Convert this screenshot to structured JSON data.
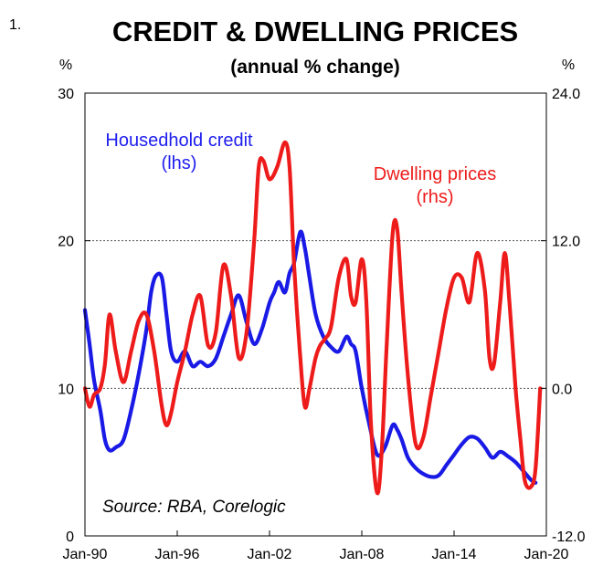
{
  "figure_number": "1.",
  "chart_data": {
    "type": "line",
    "title": "CREDIT & DWELLING PRICES",
    "subtitle": "(annual % change)",
    "left_axis": {
      "unit": "%",
      "ylim": [
        0,
        30
      ],
      "ticks": [
        "0",
        "10",
        "20",
        "30"
      ]
    },
    "right_axis": {
      "unit": "%",
      "ylim": [
        -12,
        24
      ],
      "ticks": [
        "-12.0",
        "0.0",
        "12.0",
        "24.0"
      ]
    },
    "xlim": [
      1990.0,
      2020.0
    ],
    "x_ticks": [
      {
        "value": 1990,
        "label": "Jan-90"
      },
      {
        "value": 1996,
        "label": "Jan-96"
      },
      {
        "value": 2002,
        "label": "Jan-02"
      },
      {
        "value": 2008,
        "label": "Jan-08"
      },
      {
        "value": 2014,
        "label": "Jan-14"
      },
      {
        "value": 2020,
        "label": "Jan-20"
      }
    ],
    "gridlines": [
      10,
      20
    ],
    "series": [
      {
        "name": "Housedhold credit (lhs)",
        "label_lines": [
          "Housedhold credit",
          "(lhs)"
        ],
        "axis": "left",
        "color": "#1a1ae6",
        "x": [
          1990.0,
          1990.3,
          1990.6,
          1991.0,
          1991.3,
          1991.6,
          1992.0,
          1992.5,
          1993.0,
          1993.5,
          1994.0,
          1994.3,
          1994.6,
          1995.0,
          1995.3,
          1995.6,
          1996.0,
          1996.5,
          1997.0,
          1997.5,
          1998.0,
          1998.5,
          1999.0,
          1999.5,
          2000.0,
          2000.5,
          2001.0,
          2001.5,
          2002.0,
          2002.3,
          2002.6,
          2003.0,
          2003.3,
          2003.6,
          2004.0,
          2004.3,
          2004.6,
          2005.0,
          2005.5,
          2006.0,
          2006.5,
          2007.0,
          2007.3,
          2007.6,
          2008.0,
          2008.5,
          2009.0,
          2009.5,
          2010.0,
          2010.3,
          2010.6,
          2011.0,
          2011.5,
          2012.0,
          2012.5,
          2013.0,
          2013.5,
          2014.0,
          2014.5,
          2015.0,
          2015.5,
          2016.0,
          2016.5,
          2017.0,
          2017.5,
          2018.0,
          2018.5,
          2019.0,
          2019.3
        ],
        "values": [
          15.3,
          13.0,
          10.5,
          8.5,
          6.5,
          5.8,
          6.0,
          6.5,
          8.5,
          11.0,
          14.0,
          16.5,
          17.6,
          17.5,
          15.0,
          12.5,
          11.8,
          12.5,
          11.5,
          11.8,
          11.5,
          12.0,
          13.5,
          15.0,
          16.3,
          14.5,
          13.0,
          14.0,
          15.8,
          16.5,
          17.2,
          16.5,
          17.8,
          18.5,
          20.6,
          19.5,
          17.5,
          15.0,
          13.5,
          12.8,
          12.5,
          13.5,
          13.0,
          12.5,
          10.0,
          7.5,
          5.5,
          6.0,
          7.5,
          7.2,
          6.5,
          5.3,
          4.6,
          4.2,
          4.0,
          4.1,
          4.8,
          5.5,
          6.2,
          6.7,
          6.6,
          6.0,
          5.3,
          5.7,
          5.4,
          5.0,
          4.4,
          3.8,
          3.6
        ]
      },
      {
        "name": "Dwelling prices (rhs)",
        "label_lines": [
          "Dwelling prices",
          "(rhs)"
        ],
        "axis": "right",
        "color": "#ee1b1b",
        "x": [
          1990.0,
          1990.3,
          1990.6,
          1991.0,
          1991.3,
          1991.6,
          1992.0,
          1992.5,
          1993.0,
          1993.5,
          1994.0,
          1994.5,
          1995.0,
          1995.3,
          1995.6,
          1996.0,
          1996.5,
          1997.0,
          1997.5,
          1998.0,
          1998.5,
          1999.0,
          1999.5,
          2000.0,
          2000.5,
          2001.0,
          2001.3,
          2001.6,
          2002.0,
          2002.5,
          2003.0,
          2003.3,
          2003.6,
          2004.0,
          2004.3,
          2004.6,
          2005.0,
          2005.3,
          2005.6,
          2006.0,
          2006.5,
          2007.0,
          2007.3,
          2007.6,
          2008.0,
          2008.3,
          2008.6,
          2009.0,
          2009.3,
          2009.6,
          2010.0,
          2010.3,
          2010.6,
          2011.0,
          2011.5,
          2012.0,
          2012.5,
          2013.0,
          2013.5,
          2014.0,
          2014.5,
          2015.0,
          2015.5,
          2016.0,
          2016.3,
          2016.6,
          2017.0,
          2017.3,
          2017.6,
          2018.0,
          2018.3,
          2018.6,
          2019.0,
          2019.3,
          2019.6
        ],
        "values": [
          0.0,
          -1.5,
          -0.5,
          0.0,
          2.0,
          6.0,
          3.0,
          0.5,
          3.0,
          5.5,
          6.0,
          3.0,
          -1.5,
          -3.0,
          -2.0,
          0.5,
          3.0,
          6.0,
          7.5,
          3.5,
          4.5,
          10.0,
          7.5,
          2.5,
          4.5,
          12.0,
          18.0,
          18.5,
          17.0,
          18.0,
          20.0,
          18.0,
          10.0,
          2.5,
          -1.5,
          0.0,
          2.5,
          3.5,
          4.0,
          5.0,
          9.0,
          10.5,
          7.5,
          7.0,
          10.5,
          7.0,
          -3.0,
          -8.5,
          -5.0,
          3.0,
          12.5,
          13.0,
          7.5,
          1.0,
          -4.5,
          -4.0,
          -0.5,
          3.0,
          6.5,
          9.0,
          9.0,
          7.0,
          11.0,
          8.0,
          2.5,
          2.0,
          7.0,
          11.0,
          7.0,
          0.0,
          -4.0,
          -7.5,
          -8.0,
          -6.5,
          0.0
        ]
      }
    ],
    "source": "Source: RBA, Corelogic"
  }
}
